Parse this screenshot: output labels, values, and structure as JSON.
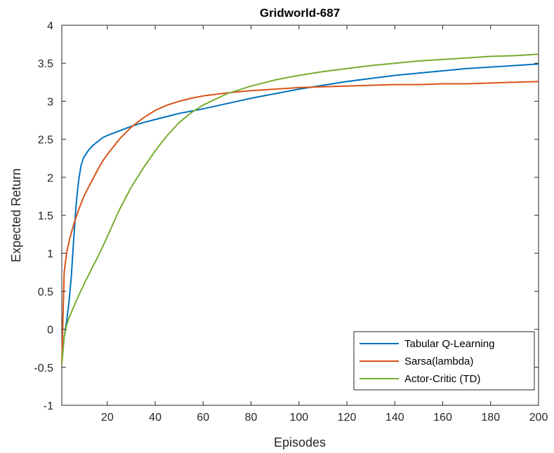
{
  "chart_data": {
    "type": "line",
    "title": "Gridworld-687",
    "xlabel": "Episodes",
    "ylabel": "Expected Return",
    "xlim": [
      1,
      200
    ],
    "ylim": [
      -1,
      4
    ],
    "xticks": [
      20,
      40,
      60,
      80,
      100,
      120,
      140,
      160,
      180,
      200
    ],
    "yticks": [
      -1,
      -0.5,
      0,
      0.5,
      1,
      1.5,
      2,
      2.5,
      3,
      3.5,
      4
    ],
    "xtick_labels": [
      "20",
      "40",
      "60",
      "80",
      "100",
      "120",
      "140",
      "160",
      "180",
      "200"
    ],
    "ytick_labels": [
      "-1",
      "-0.5",
      "0",
      "0.5",
      "1",
      "1.5",
      "2",
      "2.5",
      "3",
      "3.5",
      "4"
    ],
    "grid": false,
    "legend_position": "bottom-right",
    "x": [
      1,
      2,
      3,
      4,
      5,
      6,
      7,
      8,
      9,
      10,
      11,
      12,
      14,
      16,
      18,
      20,
      25,
      30,
      35,
      40,
      45,
      50,
      55,
      60,
      70,
      80,
      90,
      100,
      110,
      120,
      130,
      140,
      150,
      160,
      170,
      180,
      190,
      200
    ],
    "series": [
      {
        "name": "Tabular Q-Learning",
        "color": "#0072BD",
        "values": [
          -0.45,
          -0.1,
          0.1,
          0.35,
          0.7,
          1.2,
          1.65,
          1.95,
          2.15,
          2.25,
          2.3,
          2.35,
          2.42,
          2.47,
          2.52,
          2.55,
          2.61,
          2.67,
          2.72,
          2.76,
          2.8,
          2.84,
          2.87,
          2.9,
          2.97,
          3.04,
          3.1,
          3.16,
          3.21,
          3.26,
          3.3,
          3.34,
          3.37,
          3.4,
          3.43,
          3.45,
          3.47,
          3.49
        ]
      },
      {
        "name": "Sarsa(lambda)",
        "color": "#D95319",
        "values": [
          -0.45,
          0.75,
          1.0,
          1.15,
          1.27,
          1.38,
          1.48,
          1.57,
          1.65,
          1.73,
          1.8,
          1.86,
          1.98,
          2.1,
          2.21,
          2.3,
          2.5,
          2.66,
          2.78,
          2.88,
          2.95,
          3.0,
          3.04,
          3.07,
          3.11,
          3.14,
          3.16,
          3.18,
          3.19,
          3.2,
          3.21,
          3.22,
          3.22,
          3.23,
          3.23,
          3.24,
          3.25,
          3.26
        ]
      },
      {
        "name": "Actor-Critic (TD)",
        "color": "#77AC30",
        "values": [
          -0.45,
          -0.1,
          0.05,
          0.15,
          0.22,
          0.3,
          0.37,
          0.44,
          0.51,
          0.57,
          0.64,
          0.7,
          0.83,
          0.95,
          1.08,
          1.22,
          1.57,
          1.87,
          2.12,
          2.35,
          2.55,
          2.72,
          2.85,
          2.95,
          3.1,
          3.2,
          3.28,
          3.34,
          3.39,
          3.43,
          3.47,
          3.5,
          3.53,
          3.55,
          3.57,
          3.59,
          3.6,
          3.62
        ]
      }
    ]
  }
}
